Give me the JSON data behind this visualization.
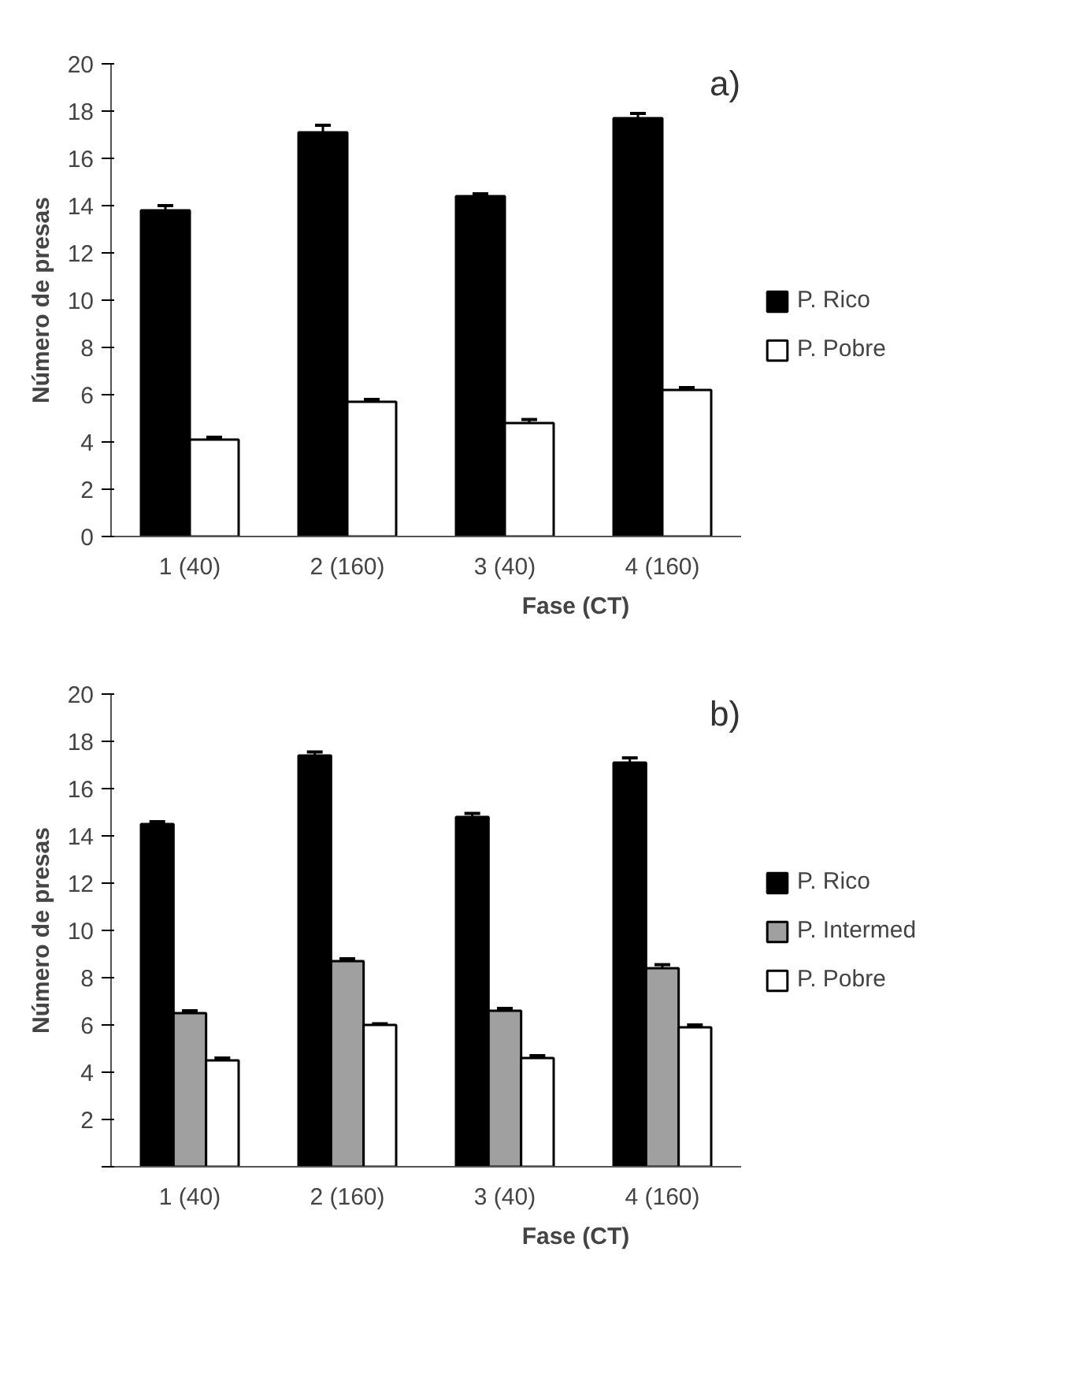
{
  "chart_data": [
    {
      "type": "bar",
      "title": "a)",
      "xlabel": "Fase (CT)",
      "ylabel": "Número de presas",
      "categories": [
        "1 (40)",
        "2 (160)",
        "3 (40)",
        "4 (160)"
      ],
      "series": [
        {
          "name": "P. Rico",
          "color": "#000000",
          "values": [
            13.8,
            17.1,
            14.4,
            17.7
          ],
          "errors": [
            0.2,
            0.3,
            0.1,
            0.2
          ]
        },
        {
          "name": "P. Pobre",
          "color": "#ffffff",
          "values": [
            4.1,
            5.7,
            4.8,
            6.2
          ],
          "errors": [
            0.1,
            0.1,
            0.15,
            0.1
          ]
        }
      ],
      "ylim": [
        0,
        20
      ],
      "yticks": [
        0,
        2,
        4,
        6,
        8,
        10,
        12,
        14,
        16,
        18,
        20
      ],
      "grid": false,
      "legend": "right"
    },
    {
      "type": "bar",
      "title": "b)",
      "xlabel": "Fase (CT)",
      "ylabel": "Número de presas",
      "categories": [
        "1 (40)",
        "2 (160)",
        "3 (40)",
        "4 (160)"
      ],
      "series": [
        {
          "name": "P. Rico",
          "color": "#000000",
          "values": [
            14.5,
            17.4,
            14.8,
            17.1
          ],
          "errors": [
            0.1,
            0.15,
            0.15,
            0.2
          ]
        },
        {
          "name": "P. Intermed",
          "color": "#a0a0a0",
          "values": [
            6.5,
            8.7,
            6.6,
            8.4
          ],
          "errors": [
            0.1,
            0.1,
            0.1,
            0.15
          ]
        },
        {
          "name": "P. Pobre",
          "color": "#ffffff",
          "values": [
            4.5,
            6.0,
            4.6,
            5.9
          ],
          "errors": [
            0.1,
            0.05,
            0.1,
            0.1
          ]
        }
      ],
      "ylim": [
        0,
        20
      ],
      "yticks": [
        {
          "value": 0,
          "label": null
        },
        2,
        4,
        6,
        8,
        10,
        12,
        14,
        16,
        18,
        20
      ],
      "grid": false,
      "legend": "right"
    }
  ]
}
